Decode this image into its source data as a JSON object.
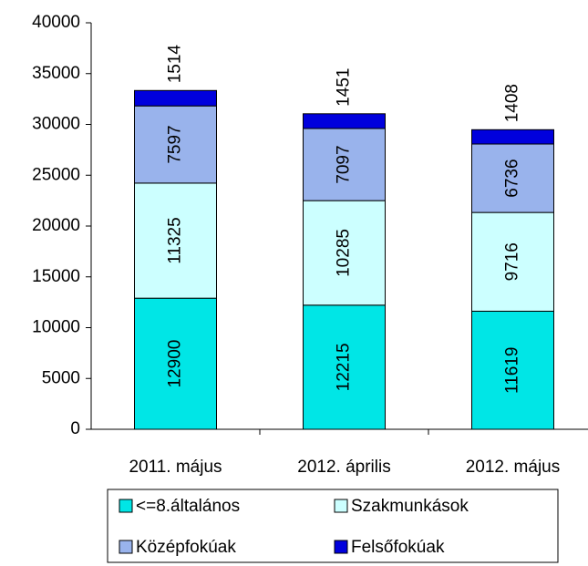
{
  "chart_data": {
    "type": "stacked_bar",
    "categories": [
      "2011. május",
      "2012. április",
      "2012. május"
    ],
    "series": [
      {
        "name": "<=8.általános",
        "color": "#00e6e6",
        "values": [
          12900,
          12215,
          11619
        ]
      },
      {
        "name": "Szakmunkások",
        "color": "#ccffff",
        "values": [
          11325,
          10285,
          9716
        ]
      },
      {
        "name": "Középfokúak",
        "color": "#99b3ec",
        "values": [
          7597,
          7097,
          6736
        ]
      },
      {
        "name": "Felsőfokúak",
        "color": "#0000dd",
        "values": [
          1514,
          1451,
          1408
        ]
      }
    ],
    "ylim": [
      0,
      40000
    ],
    "yticks": [
      0,
      5000,
      10000,
      15000,
      20000,
      25000,
      30000,
      35000,
      40000
    ],
    "legend": "bottom"
  }
}
